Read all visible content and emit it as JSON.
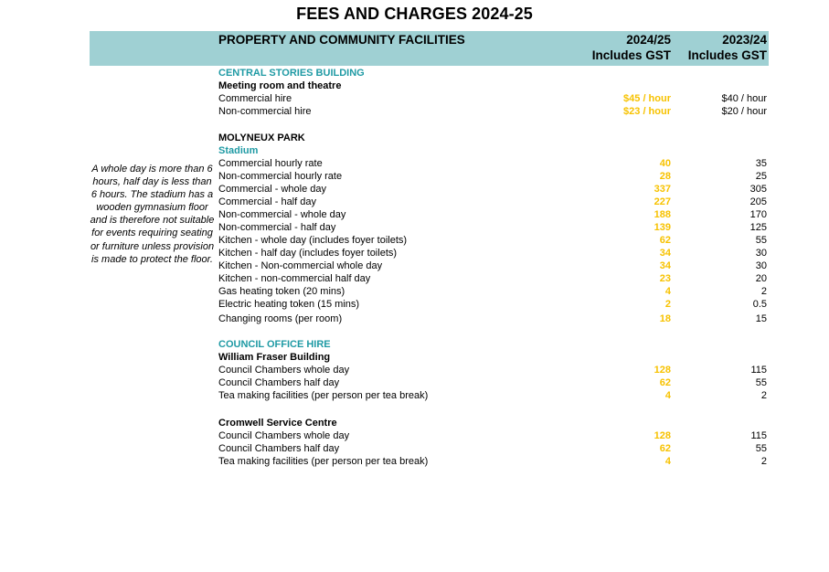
{
  "title": "FEES AND CHARGES 2024-25",
  "header": {
    "category": "PROPERTY AND COMMUNITY FACILITIES",
    "col1_line1": "2024/25",
    "col1_line2": "Includes GST",
    "col2_line1": "2023/24",
    "col2_line2": "Includes GST"
  },
  "note": "A whole day is more than 6 hours, half day is less than 6 hours. The stadium has a wooden gymnasium floor and is therefore not suitable for events requiring seating or furniture unless provision is made to protect the floor.",
  "rows": [
    {
      "kind": "section",
      "label": "CENTRAL STORIES BUILDING"
    },
    {
      "kind": "sub",
      "label": "Meeting room and theatre"
    },
    {
      "kind": "item",
      "label": "Commercial hire",
      "v2024": "$45 / hour",
      "v2023": "$40 / hour"
    },
    {
      "kind": "item",
      "label": "Non-commercial hire",
      "v2024": "$23 / hour",
      "v2023": "$20 / hour"
    },
    {
      "kind": "sub",
      "label": "MOLYNEUX PARK"
    },
    {
      "kind": "section",
      "label": "Stadium"
    },
    {
      "kind": "item",
      "label": "Commercial hourly rate",
      "v2024": "40",
      "v2023": "35"
    },
    {
      "kind": "item",
      "label": "Non-commercial hourly rate",
      "v2024": "28",
      "v2023": "25"
    },
    {
      "kind": "item",
      "label": "Commercial - whole day",
      "v2024": "337",
      "v2023": "305"
    },
    {
      "kind": "item",
      "label": "Commercial - half day",
      "v2024": "227",
      "v2023": "205"
    },
    {
      "kind": "item",
      "label": "Non-commercial - whole day",
      "v2024": "188",
      "v2023": "170"
    },
    {
      "kind": "item",
      "label": "Non-commercial - half day",
      "v2024": "139",
      "v2023": "125"
    },
    {
      "kind": "item",
      "label": "Kitchen - whole day (includes foyer toilets)",
      "v2024": "62",
      "v2023": "55"
    },
    {
      "kind": "item",
      "label": "Kitchen - half day (includes foyer toilets)",
      "v2024": "34",
      "v2023": "30"
    },
    {
      "kind": "item",
      "label": "Kitchen - Non-commercial whole day",
      "v2024": "34",
      "v2023": "30"
    },
    {
      "kind": "item",
      "label": "Kitchen - non-commercial half day",
      "v2024": "23",
      "v2023": "20"
    },
    {
      "kind": "item",
      "label": "Gas heating token (20 mins)",
      "v2024": "4",
      "v2023": "2"
    },
    {
      "kind": "item",
      "label": "Electric heating token (15 mins)",
      "v2024": "2",
      "v2023": "0.5"
    },
    {
      "kind": "item",
      "label": "Changing rooms (per room)",
      "v2024": "18",
      "v2023": "15"
    },
    {
      "kind": "section",
      "label": "COUNCIL OFFICE HIRE"
    },
    {
      "kind": "sub",
      "label": "William Fraser Building"
    },
    {
      "kind": "item",
      "label": "Council Chambers whole day",
      "v2024": "128",
      "v2023": "115"
    },
    {
      "kind": "item",
      "label": "Council Chambers half day",
      "v2024": "62",
      "v2023": "55"
    },
    {
      "kind": "item",
      "label": "Tea making facilities (per person per tea break)",
      "v2024": "4",
      "v2023": "2"
    },
    {
      "kind": "sub",
      "label": "Cromwell Service Centre"
    },
    {
      "kind": "item",
      "label": "Council Chambers whole day",
      "v2024": "128",
      "v2023": "115"
    },
    {
      "kind": "item",
      "label": "Council Chambers half day",
      "v2024": "62",
      "v2023": "55"
    },
    {
      "kind": "item",
      "label": "Tea making facilities (per person per tea break)",
      "v2024": "4",
      "v2023": "2"
    }
  ]
}
